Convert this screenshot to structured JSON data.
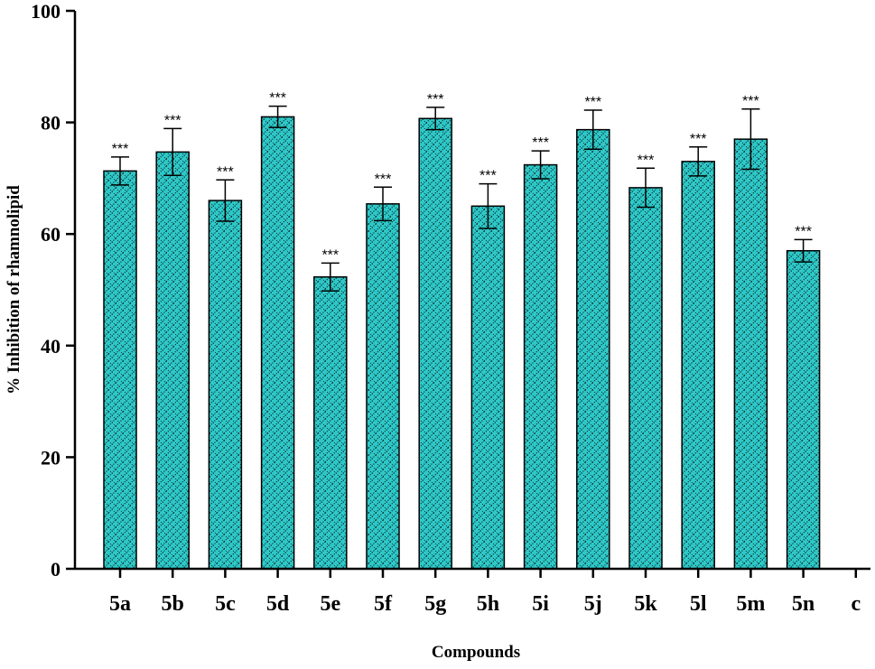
{
  "chart_data": {
    "type": "bar",
    "title": "",
    "xlabel": "Compounds",
    "ylabel": "% Inhibition of rhamnolipid",
    "ylim": [
      0,
      100
    ],
    "yticks": [
      0,
      20,
      40,
      60,
      80,
      100
    ],
    "categories": [
      "5a",
      "5b",
      "5c",
      "5d",
      "5e",
      "5f",
      "5g",
      "5h",
      "5i",
      "5j",
      "5k",
      "5l",
      "5m",
      "5n",
      "c"
    ],
    "values": [
      71.3,
      74.7,
      66.0,
      81.0,
      52.3,
      65.4,
      80.7,
      65.0,
      72.4,
      78.7,
      68.3,
      73.0,
      77.0,
      57.0,
      null
    ],
    "errors": [
      2.5,
      4.2,
      3.7,
      1.9,
      2.5,
      3.0,
      2.0,
      4.0,
      2.5,
      3.5,
      3.5,
      2.6,
      5.4,
      2.0,
      null
    ],
    "significance": [
      "***",
      "***",
      "***",
      "***",
      "***",
      "***",
      "***",
      "***",
      "***",
      "***",
      "***",
      "***",
      "***",
      "***",
      ""
    ],
    "bar_color": "#2ec8c8",
    "pattern_color": "#0e2a2a",
    "grid": false,
    "legend": "none"
  }
}
